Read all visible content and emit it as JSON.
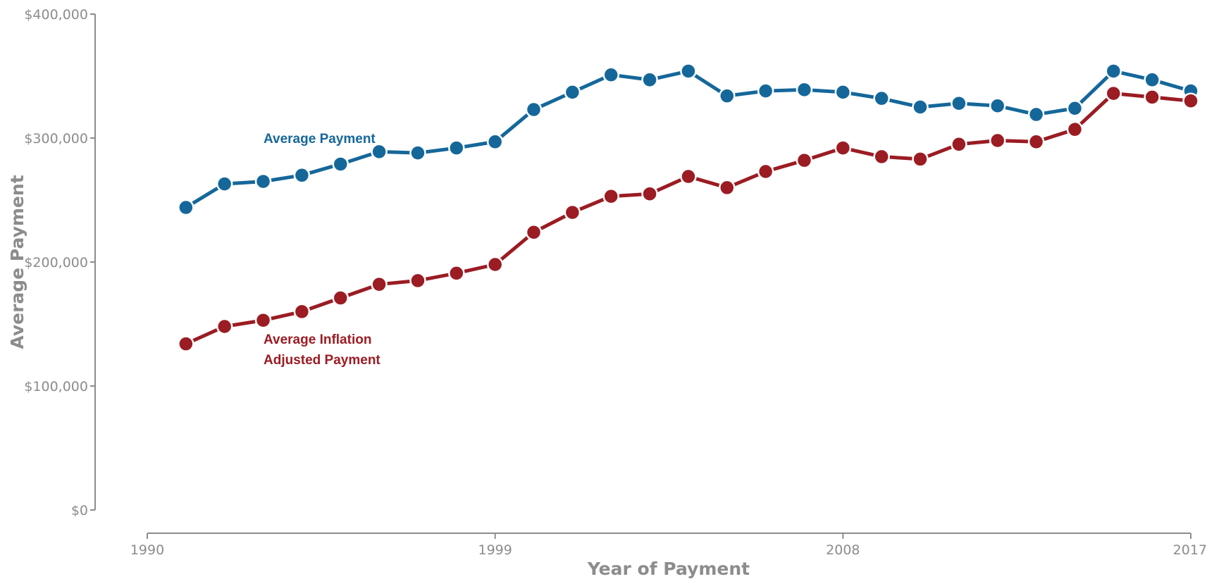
{
  "chart_data": {
    "type": "line",
    "xlabel": "Year of Payment",
    "ylabel": "Average Payment",
    "xlim": [
      1990,
      2017
    ],
    "ylim": [
      0,
      400000
    ],
    "x_ticks": [
      1990,
      1999,
      2008,
      2017
    ],
    "y_ticks": [
      0,
      100000,
      200000,
      300000,
      400000
    ],
    "y_tick_labels": [
      "$0",
      "$100,000",
      "$200,000",
      "$300,000",
      "$400,000"
    ],
    "grid": false,
    "legend": "inline labels",
    "x": [
      1991,
      1992,
      1993,
      1994,
      1995,
      1996,
      1997,
      1998,
      1999,
      2000,
      2001,
      2002,
      2003,
      2004,
      2005,
      2006,
      2007,
      2008,
      2009,
      2010,
      2011,
      2012,
      2013,
      2014,
      2015,
      2016,
      2017
    ],
    "series": [
      {
        "name": "Average Payment",
        "color": "#15679a",
        "values": [
          244000,
          263000,
          265000,
          270000,
          279000,
          289000,
          288000,
          292000,
          297000,
          323000,
          337000,
          351000,
          347000,
          354000,
          334000,
          338000,
          339000,
          337000,
          332000,
          325000,
          328000,
          326000,
          319000,
          324000,
          354000,
          347000,
          338000
        ]
      },
      {
        "name": "Average Inflation Adjusted Payment",
        "name_lines": [
          "Average Inflation",
          "Adjusted Payment"
        ],
        "color": "#9b1c23",
        "values": [
          134000,
          148000,
          153000,
          160000,
          171000,
          182000,
          185000,
          191000,
          198000,
          224000,
          240000,
          253000,
          255000,
          269000,
          260000,
          273000,
          282000,
          292000,
          285000,
          283000,
          295000,
          298000,
          297000,
          307000,
          336000,
          333000,
          330000
        ]
      }
    ]
  }
}
